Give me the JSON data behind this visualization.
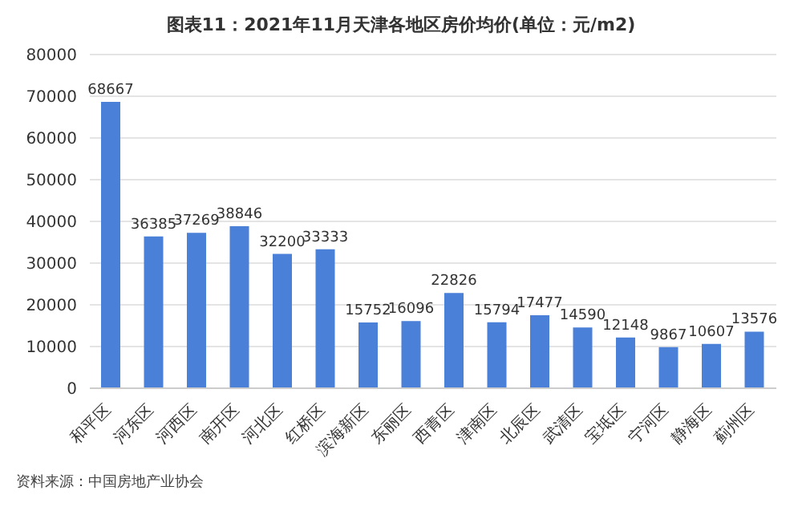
{
  "chart_data": {
    "type": "bar",
    "title": "图表11：2021年11月天津各地区房价均价(单位：元/m2)",
    "categories": [
      "和平区",
      "河东区",
      "河西区",
      "南开区",
      "河北区",
      "红桥区",
      "滨海新区",
      "东丽区",
      "西青区",
      "津南区",
      "北辰区",
      "武清区",
      "宝坻区",
      "宁河区",
      "静海区",
      "蓟州区"
    ],
    "values": [
      68667,
      36385,
      37269,
      38846,
      32200,
      33333,
      15752,
      16096,
      22826,
      15794,
      17477,
      14590,
      12148,
      9867,
      10607,
      13576
    ],
    "color": "#4a80d8",
    "ylim": [
      0,
      80000
    ],
    "yticks": [
      0,
      10000,
      20000,
      30000,
      40000,
      50000,
      60000,
      70000,
      80000
    ],
    "grid": "y",
    "data_labels": true,
    "annotations": [
      "资料来源：中国房地产业协会"
    ]
  }
}
